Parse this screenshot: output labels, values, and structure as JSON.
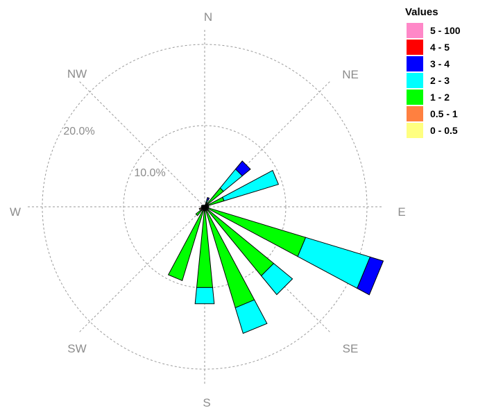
{
  "chart_data": {
    "type": "wind-rose",
    "title": "",
    "legend": {
      "title": "Values",
      "placement": "top-right",
      "entries": [
        {
          "label": "5 - 100",
          "color": "#ff88c8"
        },
        {
          "label": "4 - 5",
          "color": "#ff0000"
        },
        {
          "label": "3 - 4",
          "color": "#0000ff"
        },
        {
          "label": "2 - 3",
          "color": "#00ffff"
        },
        {
          "label": "1 - 2",
          "color": "#00ff00"
        },
        {
          "label": "0.5 - 1",
          "color": "#ff8040"
        },
        {
          "label": "0 - 0.5",
          "color": "#ffff80"
        }
      ]
    },
    "directions": [
      {
        "label": "N",
        "angle": 0
      },
      {
        "label": "NE",
        "angle": 45
      },
      {
        "label": "E",
        "angle": 90
      },
      {
        "label": "SE",
        "angle": 135
      },
      {
        "label": "S",
        "angle": 180
      },
      {
        "label": "SW",
        "angle": 225
      },
      {
        "label": "W",
        "angle": 270
      },
      {
        "label": "NW",
        "angle": 315
      }
    ],
    "rings": [
      {
        "value": 10,
        "label": "10.0%"
      },
      {
        "value": 20,
        "label": "20.0%"
      }
    ],
    "sector_width_deg": 11.25,
    "sectors": [
      {
        "direction": 22.5,
        "cumulative": {
          "0 - 0.5": 0.2,
          "0.5 - 1": 0.3,
          "1 - 2": 0.6,
          "2 - 3": 0.9,
          "3 - 4": 1.2
        }
      },
      {
        "direction": 45,
        "cumulative": {
          "0 - 0.5": 0.3,
          "0.5 - 1": 0.5,
          "1 - 2": 3.0,
          "2 - 3": 6.0,
          "3 - 4": 7.3
        }
      },
      {
        "direction": 67.5,
        "cumulative": {
          "0 - 0.5": 0.3,
          "0.5 - 1": 0.5,
          "1 - 2": 2.5,
          "2 - 3": 9.5
        }
      },
      {
        "direction": 112.5,
        "cumulative": {
          "0 - 0.5": 0.3,
          "0.5 - 1": 0.5,
          "1 - 2": 13.0,
          "2 - 3": 21.3,
          "3 - 4": 23.0
        }
      },
      {
        "direction": 135,
        "cumulative": {
          "0 - 0.5": 0.3,
          "0.5 - 1": 0.5,
          "1 - 2": 11.0,
          "2 - 3": 14.0
        }
      },
      {
        "direction": 157.5,
        "cumulative": {
          "0 - 0.5": 0.3,
          "0.5 - 1": 0.5,
          "1 - 2": 13.0,
          "2 - 3": 16.3
        }
      },
      {
        "direction": 180,
        "cumulative": {
          "0 - 0.5": 0.3,
          "0.5 - 1": 0.5,
          "1 - 2": 10.0,
          "2 - 3": 12.0
        }
      },
      {
        "direction": 202.5,
        "cumulative": {
          "0 - 0.5": 0.3,
          "0.5 - 1": 0.5,
          "1 - 2": 9.5
        }
      },
      {
        "direction": 225,
        "cumulative": {
          "0 - 0.5": 0.3,
          "0.5 - 1": 0.6,
          "1 - 2": 1.4
        }
      },
      {
        "direction": 247.5,
        "cumulative": {
          "0 - 0.5": 0.3,
          "0.5 - 1": 0.7
        }
      },
      {
        "direction": 270,
        "cumulative": {
          "0 - 0.5": 0.4
        }
      },
      {
        "direction": 292.5,
        "cumulative": {
          "0 - 0.5": 0.4
        }
      },
      {
        "direction": 315,
        "cumulative": {
          "0 - 0.5": 0.3
        }
      },
      {
        "direction": 337.5,
        "cumulative": {
          "0 - 0.5": 0.2
        }
      },
      {
        "direction": 0,
        "cumulative": {
          "0 - 0.5": 0.2
        }
      },
      {
        "direction": 90,
        "cumulative": {
          "0 - 0.5": 0.3,
          "0.5 - 1": 0.5
        }
      }
    ]
  }
}
